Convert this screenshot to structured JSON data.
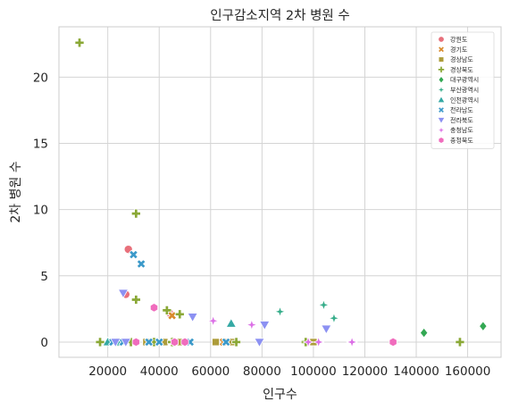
{
  "chart_data": {
    "type": "scatter",
    "title": "인구감소지역 2차 병원 수",
    "xlabel": "인구수",
    "ylabel": "2차 병원 수",
    "xlim": [
      1000,
      173000
    ],
    "ylim": [
      -1.15,
      23.8
    ],
    "xticks": [
      20000,
      40000,
      60000,
      80000,
      100000,
      120000,
      140000,
      160000
    ],
    "xtick_labels": [
      "20000",
      "40000",
      "60000",
      "80000",
      "100000",
      "120000",
      "140000",
      "160000"
    ],
    "yticks": [
      0,
      5,
      10,
      15,
      20
    ],
    "ytick_labels": [
      "0",
      "5",
      "10",
      "15",
      "20"
    ],
    "grid": true,
    "legend_position": "top-right",
    "series": [
      {
        "name": "강원도",
        "color": "#e8707b",
        "marker": "circle",
        "points": [
          [
            28000,
            7.0
          ],
          [
            27000,
            3.6
          ],
          [
            35000,
            0
          ],
          [
            44000,
            2.2
          ]
        ]
      },
      {
        "name": "경기도",
        "color": "#d98a2c",
        "marker": "x",
        "points": [
          [
            45000,
            2.0
          ],
          [
            65000,
            0
          ]
        ]
      },
      {
        "name": "경상남도",
        "color": "#ad9c3a",
        "marker": "square",
        "points": [
          [
            35000,
            0
          ],
          [
            42000,
            0
          ],
          [
            48000,
            0
          ],
          [
            62000,
            0
          ],
          [
            68000,
            0
          ],
          [
            100000,
            0
          ]
        ]
      },
      {
        "name": "경상북도",
        "color": "#8aa836",
        "marker": "plus",
        "points": [
          [
            9000,
            22.6
          ],
          [
            31000,
            9.7
          ],
          [
            31000,
            3.2
          ],
          [
            43000,
            2.4
          ],
          [
            48000,
            2.1
          ],
          [
            17000,
            0
          ],
          [
            24000,
            0
          ],
          [
            29000,
            0
          ],
          [
            38000,
            0
          ],
          [
            45000,
            0
          ],
          [
            70000,
            0
          ],
          [
            97000,
            0
          ],
          [
            157000,
            0
          ]
        ]
      },
      {
        "name": "대구광역시",
        "color": "#33a853",
        "marker": "diamond",
        "points": [
          [
            143000,
            0.7
          ],
          [
            166000,
            1.2
          ]
        ]
      },
      {
        "name": "부산광역시",
        "color": "#36ad8a",
        "marker": "star",
        "points": [
          [
            87000,
            2.3
          ],
          [
            104000,
            2.8
          ],
          [
            108000,
            1.8
          ]
        ]
      },
      {
        "name": "인천광역시",
        "color": "#35a9a4",
        "marker": "triangle-up",
        "points": [
          [
            20000,
            0
          ],
          [
            24000,
            0
          ],
          [
            68000,
            1.4
          ]
        ]
      },
      {
        "name": "전라남도",
        "color": "#3b99c9",
        "marker": "x",
        "points": [
          [
            30000,
            6.6
          ],
          [
            33000,
            5.9
          ],
          [
            22000,
            0
          ],
          [
            26000,
            0
          ],
          [
            36000,
            0
          ],
          [
            40000,
            0
          ],
          [
            52000,
            0
          ],
          [
            66000,
            0
          ]
        ]
      },
      {
        "name": "전라북도",
        "color": "#8c91f2",
        "marker": "triangle-down",
        "points": [
          [
            26000,
            3.7
          ],
          [
            53000,
            1.9
          ],
          [
            81000,
            1.3
          ],
          [
            105000,
            1.0
          ],
          [
            23000,
            0
          ],
          [
            27000,
            0
          ],
          [
            79000,
            0
          ]
        ]
      },
      {
        "name": "충청남도",
        "color": "#db6fe6",
        "marker": "star",
        "points": [
          [
            61000,
            1.6
          ],
          [
            76000,
            1.3
          ],
          [
            98000,
            0
          ],
          [
            102000,
            0
          ],
          [
            115000,
            0
          ]
        ]
      },
      {
        "name": "충청북도",
        "color": "#f06cbd",
        "marker": "hexagon",
        "points": [
          [
            38000,
            2.6
          ],
          [
            31000,
            0
          ],
          [
            46000,
            0
          ],
          [
            50000,
            0
          ],
          [
            131000,
            0
          ]
        ]
      }
    ]
  }
}
